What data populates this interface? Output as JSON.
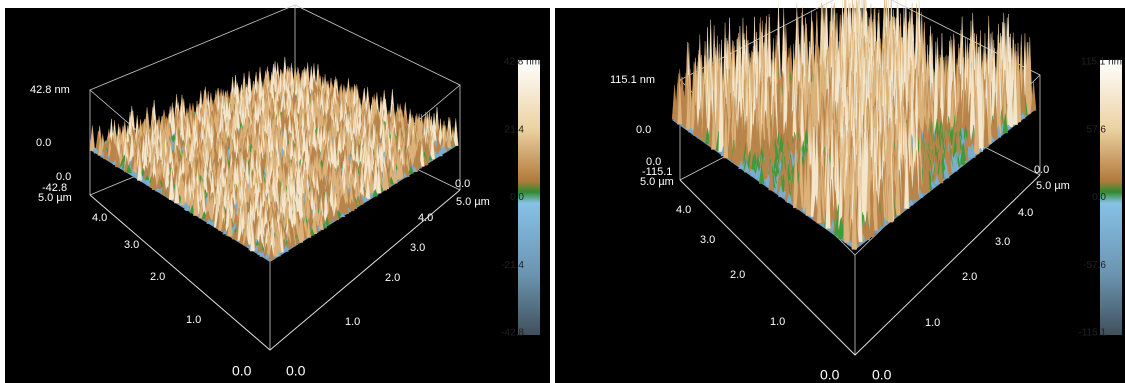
{
  "panels": [
    {
      "colorbar_labels": [
        "42.8 nm",
        "21.4",
        "0.0",
        "-21.4",
        "-42.8"
      ],
      "axis_labels": [
        "42.8 nm",
        "0.0",
        "0.0",
        "-42.8",
        "5.0 µm",
        "4.0",
        "3.0",
        "2.0",
        "1.0",
        "0.0",
        "0.0",
        "1.0",
        "2.0",
        "3.0",
        "4.0",
        "5.0 µm",
        "0.0"
      ]
    },
    {
      "colorbar_labels": [
        "115.1 nm",
        "57.6",
        "0.0",
        "-57.6",
        "-115.1"
      ],
      "axis_labels": [
        "115.1 nm",
        "0.0",
        "0.0",
        "-115.1",
        "5.0 µm",
        "4.0",
        "3.0",
        "2.0",
        "1.0",
        "0.0",
        "0.0",
        "1.0",
        "2.0",
        "3.0",
        "4.0",
        "5.0 µm",
        "0.0"
      ]
    }
  ]
}
